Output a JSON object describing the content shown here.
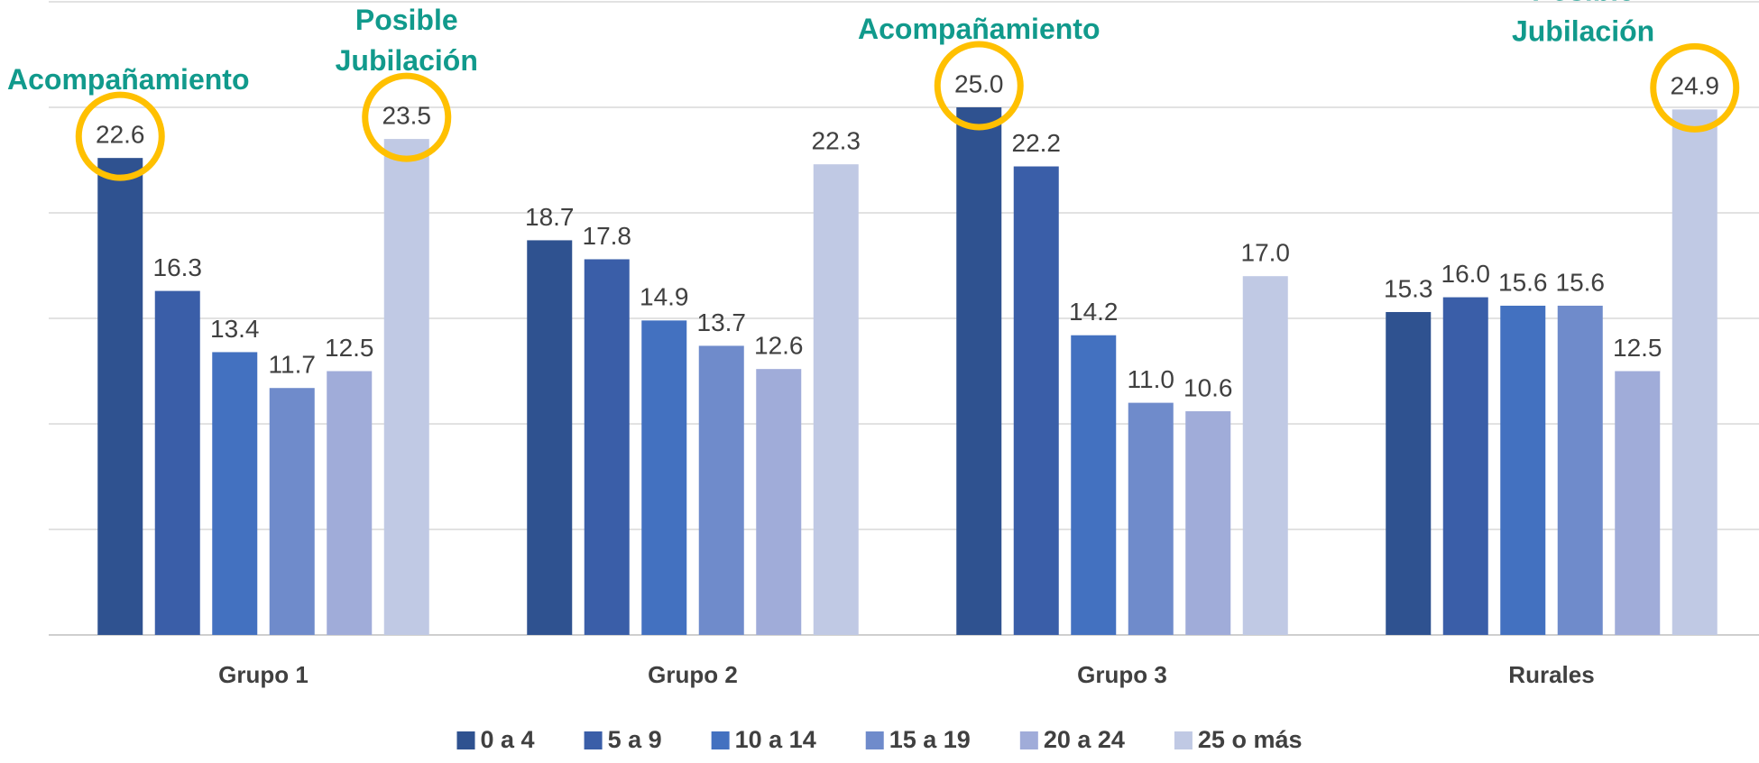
{
  "chart_data": {
    "type": "bar",
    "categories": [
      "Grupo 1",
      "Grupo 2",
      "Grupo 3",
      "Rurales"
    ],
    "series": [
      {
        "name": "0 a 4",
        "color": "#2f5290",
        "values": [
          22.6,
          18.7,
          25.0,
          15.3
        ],
        "value_labels": [
          "22.6",
          "18.7",
          "25.0",
          "15.3"
        ]
      },
      {
        "name": "5 a 9",
        "color": "#3a5ea8",
        "values": [
          16.3,
          17.8,
          22.2,
          16.0
        ],
        "value_labels": [
          "16.3",
          "17.8",
          "22.2",
          "16.0"
        ]
      },
      {
        "name": "10 a 14",
        "color": "#4371c0",
        "values": [
          13.4,
          14.9,
          14.2,
          15.6
        ],
        "value_labels": [
          "13.4",
          "14.9",
          "14.2",
          "15.6"
        ]
      },
      {
        "name": "15 a 19",
        "color": "#6f8bcb",
        "values": [
          11.7,
          13.7,
          11.0,
          15.6
        ],
        "value_labels": [
          "11.7",
          "13.7",
          "11.0",
          "15.6"
        ]
      },
      {
        "name": "20 a 24",
        "color": "#a0acd9",
        "values": [
          12.5,
          12.6,
          10.6,
          12.5
        ],
        "value_labels": [
          "12.5",
          "12.6",
          "10.6",
          "12.5"
        ]
      },
      {
        "name": "25 o más",
        "color": "#c0c9e4",
        "values": [
          23.5,
          22.3,
          17.0,
          24.9
        ],
        "value_labels": [
          "23.5",
          "22.3",
          "17.0",
          "24.9"
        ]
      }
    ],
    "annotations": [
      "Acompañamiento",
      "Posible Jubilación",
      "Acompañamiento",
      "Posible Jubilación"
    ],
    "ylim": [
      0,
      30
    ],
    "yticks": [
      0,
      5,
      10,
      15,
      20,
      25,
      30
    ],
    "grid": true,
    "legend": "bottom"
  }
}
